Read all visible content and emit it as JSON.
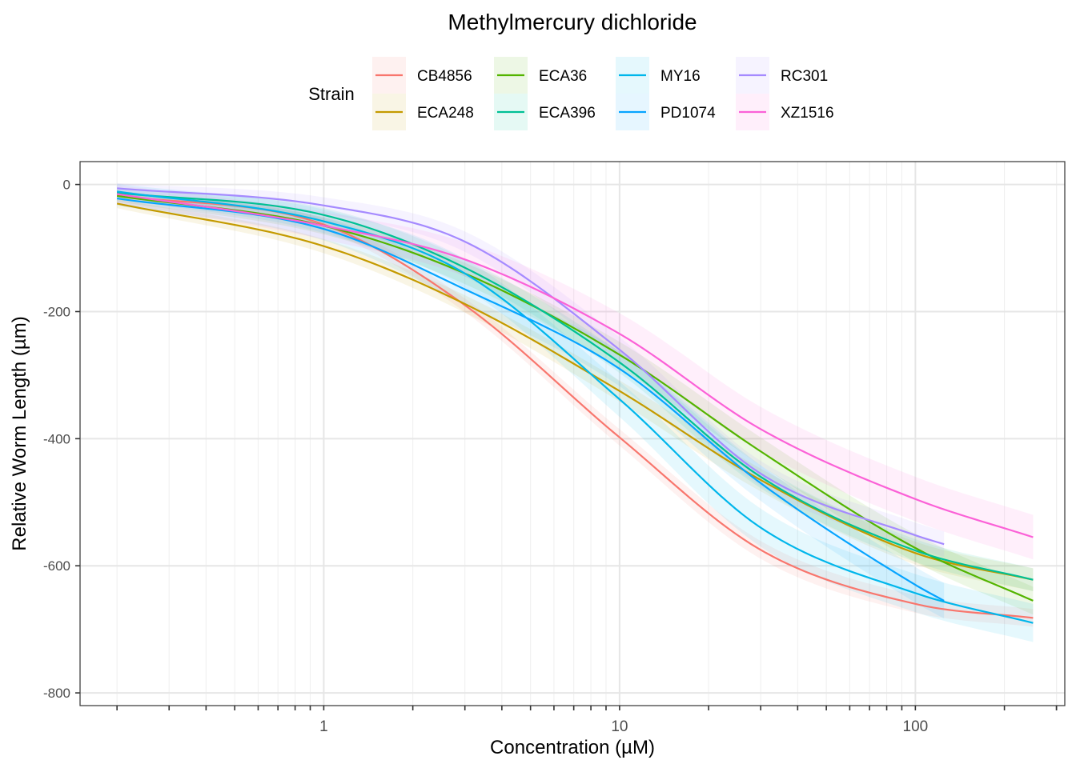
{
  "chart_data": {
    "type": "line",
    "title": "Methylmercury dichloride",
    "xlabel": "Concentration (µM)",
    "ylabel": "Relative Worm Length (µm)",
    "x_scale": "log10",
    "xlim": [
      0.15,
      320
    ],
    "ylim": [
      -820,
      36
    ],
    "x_ticks": [
      1,
      10,
      100
    ],
    "x_tick_labels": [
      "1",
      "10",
      "100"
    ],
    "y_ticks": [
      0,
      -200,
      -400,
      -600,
      -800
    ],
    "y_tick_labels": [
      "0",
      "-200",
      "-400",
      "-600",
      "-800"
    ],
    "grid": true,
    "legend": {
      "title": "Strain",
      "position": "top",
      "ncol": 4
    },
    "series": [
      {
        "name": "CB4856",
        "color": "#F8766D",
        "x_min": 0.2,
        "x_max": 250,
        "x": [
          0.2,
          1,
          3,
          10,
          30,
          100,
          250
        ],
        "y": [
          -17,
          -63,
          -190,
          -398,
          -575,
          -660,
          -682
        ],
        "band": 14
      },
      {
        "name": "ECA248",
        "color": "#C49A00",
        "x_min": 0.2,
        "x_max": 250,
        "x": [
          0.2,
          1,
          3,
          10,
          30,
          100,
          250
        ],
        "y": [
          -30,
          -97,
          -188,
          -325,
          -465,
          -580,
          -622
        ],
        "band": 18
      },
      {
        "name": "ECA36",
        "color": "#53B400",
        "x_min": 0.2,
        "x_max": 250,
        "x": [
          0.2,
          1,
          3,
          10,
          30,
          100,
          250
        ],
        "y": [
          -18,
          -65,
          -140,
          -268,
          -420,
          -572,
          -655
        ],
        "band": 22
      },
      {
        "name": "ECA396",
        "color": "#00C094",
        "x_min": 0.2,
        "x_max": 250,
        "x": [
          0.2,
          1,
          3,
          10,
          30,
          100,
          250
        ],
        "y": [
          -13,
          -48,
          -131,
          -280,
          -460,
          -576,
          -622
        ],
        "band": 18
      },
      {
        "name": "MY16",
        "color": "#00B6EB",
        "x_min": 0.2,
        "x_max": 250,
        "x": [
          0.2,
          1,
          3,
          10,
          30,
          100,
          250
        ],
        "y": [
          -11,
          -58,
          -140,
          -338,
          -540,
          -643,
          -690
        ],
        "band": 30
      },
      {
        "name": "PD1074",
        "color": "#06A4FF",
        "x_min": 0.2,
        "x_max": 125,
        "x": [
          0.2,
          1,
          3,
          10,
          30,
          100,
          125
        ],
        "y": [
          -22,
          -70,
          -165,
          -290,
          -470,
          -630,
          -655
        ],
        "band": 28
      },
      {
        "name": "RC301",
        "color": "#A58AFF",
        "x_min": 0.2,
        "x_max": 125,
        "x": [
          0.2,
          1,
          3,
          10,
          30,
          100,
          125
        ],
        "y": [
          -6,
          -33,
          -90,
          -260,
          -455,
          -552,
          -566
        ],
        "band": 20
      },
      {
        "name": "XZ1516",
        "color": "#FB61D7",
        "x_min": 0.2,
        "x_max": 250,
        "x": [
          0.2,
          1,
          3,
          10,
          30,
          100,
          250
        ],
        "y": [
          -15,
          -65,
          -118,
          -235,
          -385,
          -495,
          -555
        ],
        "band": 35
      }
    ]
  }
}
